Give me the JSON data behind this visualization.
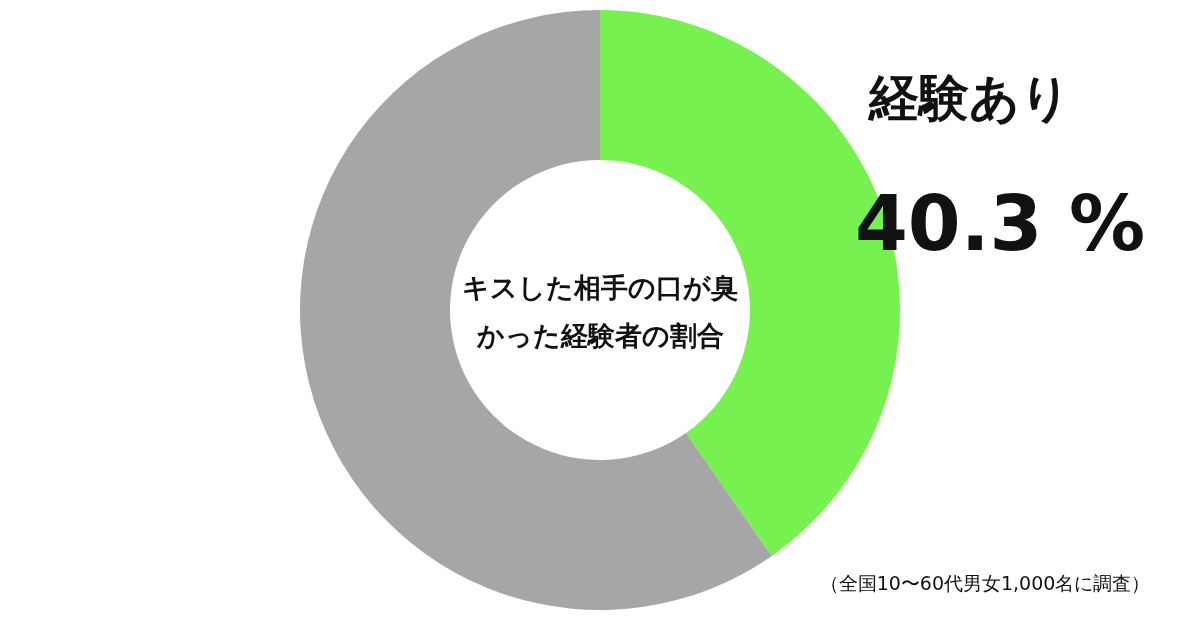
{
  "chart_data": {
    "type": "donut",
    "title": "キスした相手の口が臭かった経験者の割合",
    "categories": [
      "経験あり",
      null
    ],
    "values": [
      40.3,
      59.7
    ],
    "colors": [
      "#77f150",
      "#a6a6a6"
    ],
    "value_labels": [
      "40.3 %",
      null
    ],
    "annotations": [
      "（全国10〜60代男女1,000名に調査）"
    ]
  }
}
